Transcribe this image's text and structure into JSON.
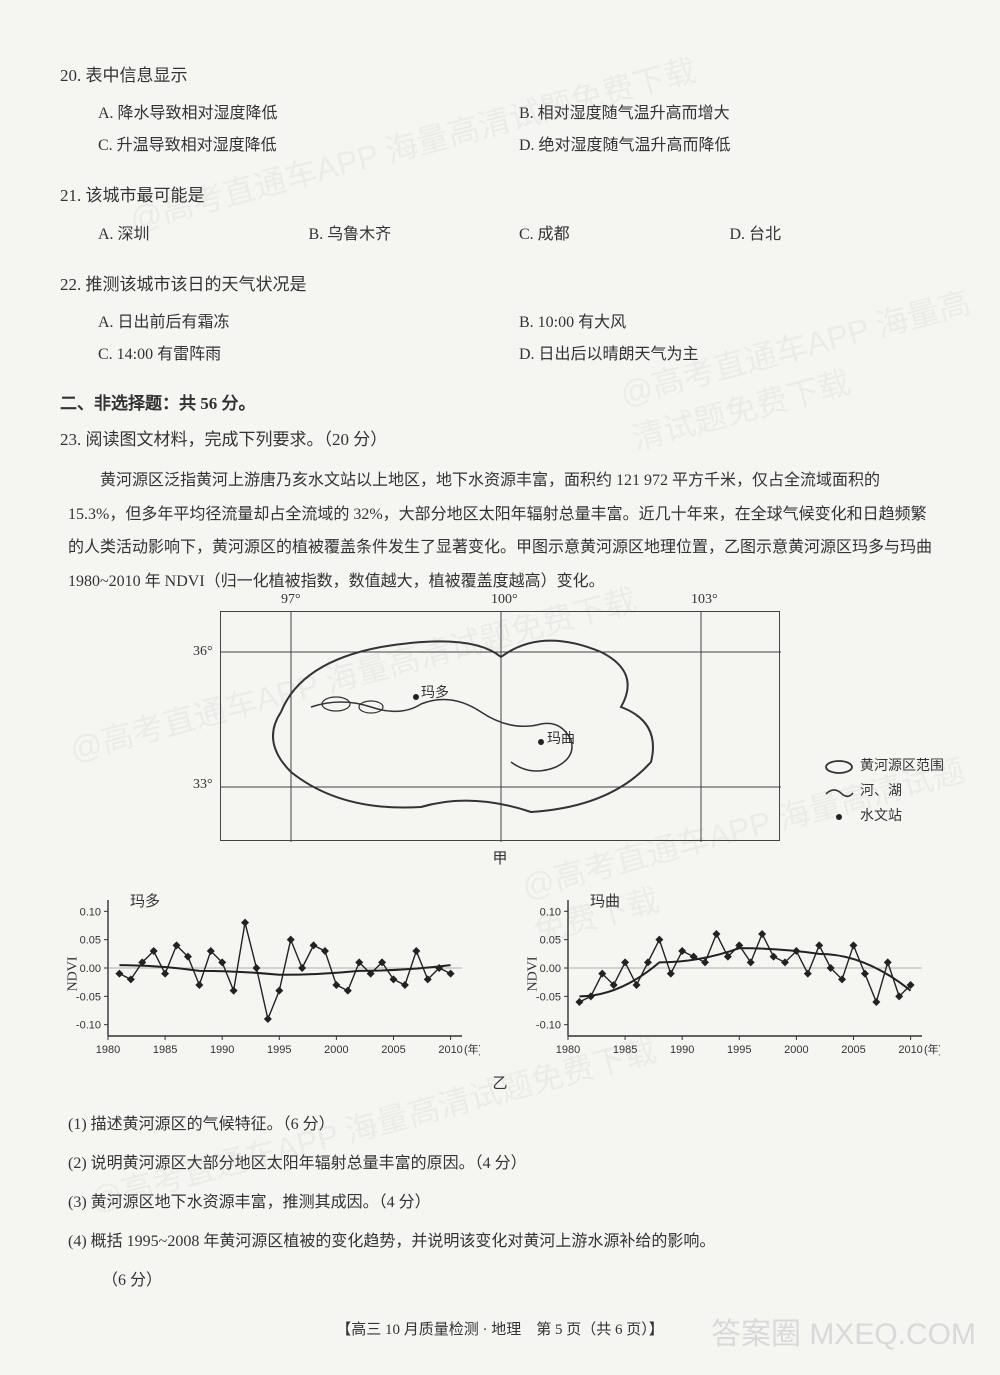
{
  "q20": {
    "num": "20.",
    "stem": "表中信息显示",
    "A": "A. 降水导致相对湿度降低",
    "B": "B. 相对湿度随气温升高而增大",
    "C": "C. 升温导致相对湿度降低",
    "D": "D. 绝对湿度随气温升高而降低"
  },
  "q21": {
    "num": "21.",
    "stem": "该城市最可能是",
    "A": "A. 深圳",
    "B": "B. 乌鲁木齐",
    "C": "C. 成都",
    "D": "D. 台北"
  },
  "q22": {
    "num": "22.",
    "stem": "推测该城市该日的天气状况是",
    "A": "A. 日出前后有霜冻",
    "B": "B. 10:00 有大风",
    "C": "C. 14:00 有雷阵雨",
    "D": "D. 日出后以晴朗天气为主"
  },
  "section2": "二、非选择题：共 56 分。",
  "q23": {
    "num": "23.",
    "stem": "阅读图文材料，完成下列要求。（20 分）",
    "passage": "黄河源区泛指黄河上游唐乃亥水文站以上地区，地下水资源丰富，面积约 121 972 平方千米，仅占全流域面积的 15.3%，但多年平均径流量却占全流域的 32%，大部分地区太阳年辐射总量丰富。近几十年来，在全球气候变化和日趋频繁的人类活动影响下，黄河源区的植被覆盖条件发生了显著变化。甲图示意黄河源区地理位置，乙图示意黄河源区玛多与玛曲 1980~2010 年 NDVI（归一化植被指数，数值越大，植被覆盖度越高）变化。",
    "sub1": "(1) 描述黄河源区的气候特征。（6 分）",
    "sub2": "(2) 说明黄河源区大部分地区太阳年辐射总量丰富的原因。（4 分）",
    "sub3": "(3) 黄河源区地下水资源丰富，推测其成因。（4 分）",
    "sub4_a": "(4) 概括 1995~2008 年黄河源区植被的变化趋势，并说明该变化对黄河上游水源补给的影响。",
    "sub4_b": "（6 分）"
  },
  "map": {
    "lon": [
      "97°",
      "100°",
      "103°"
    ],
    "lat": [
      "36°",
      "33°"
    ],
    "places": {
      "maduo": "玛多",
      "maqu": "玛曲"
    },
    "legend": {
      "boundary": "黄河源区范围",
      "river": "河、湖",
      "station": "水文站"
    },
    "caption": "甲",
    "grid_color": "#444",
    "boundary_color": "#333",
    "river_color": "#333"
  },
  "charts": {
    "caption": "乙",
    "ndvi_label": "NDVI",
    "year_label": "(年)",
    "x_ticks": [
      1980,
      1985,
      1990,
      1995,
      2000,
      2005,
      2010
    ],
    "y_ticks": [
      -0.1,
      -0.05,
      0.0,
      0.05,
      0.1
    ],
    "ylim": [
      -0.12,
      0.12
    ],
    "xlim": [
      1980,
      2011
    ],
    "maduo": {
      "title": "玛多",
      "color": "#222",
      "data": [
        [
          1981,
          -0.01
        ],
        [
          1982,
          -0.02
        ],
        [
          1983,
          0.01
        ],
        [
          1984,
          0.03
        ],
        [
          1985,
          -0.01
        ],
        [
          1986,
          0.04
        ],
        [
          1987,
          0.02
        ],
        [
          1988,
          -0.03
        ],
        [
          1989,
          0.03
        ],
        [
          1990,
          0.01
        ],
        [
          1991,
          -0.04
        ],
        [
          1992,
          0.08
        ],
        [
          1993,
          0.0
        ],
        [
          1994,
          -0.09
        ],
        [
          1995,
          -0.04
        ],
        [
          1996,
          0.05
        ],
        [
          1997,
          0.0
        ],
        [
          1998,
          0.04
        ],
        [
          1999,
          0.03
        ],
        [
          2000,
          -0.03
        ],
        [
          2001,
          -0.04
        ],
        [
          2002,
          0.01
        ],
        [
          2003,
          -0.01
        ],
        [
          2004,
          0.01
        ],
        [
          2005,
          -0.02
        ],
        [
          2006,
          -0.03
        ],
        [
          2007,
          0.03
        ],
        [
          2008,
          -0.02
        ],
        [
          2009,
          0.0
        ],
        [
          2010,
          -0.01
        ]
      ],
      "trend": [
        [
          1981,
          0.005
        ],
        [
          1988,
          -0.005
        ],
        [
          1995,
          -0.012
        ],
        [
          2002,
          -0.005
        ],
        [
          2010,
          0.005
        ]
      ]
    },
    "maqu": {
      "title": "玛曲",
      "color": "#222",
      "data": [
        [
          1981,
          -0.06
        ],
        [
          1982,
          -0.05
        ],
        [
          1983,
          -0.01
        ],
        [
          1984,
          -0.03
        ],
        [
          1985,
          0.01
        ],
        [
          1986,
          -0.03
        ],
        [
          1987,
          0.01
        ],
        [
          1988,
          0.05
        ],
        [
          1989,
          -0.01
        ],
        [
          1990,
          0.03
        ],
        [
          1991,
          0.02
        ],
        [
          1992,
          0.01
        ],
        [
          1993,
          0.06
        ],
        [
          1994,
          0.02
        ],
        [
          1995,
          0.04
        ],
        [
          1996,
          0.01
        ],
        [
          1997,
          0.06
        ],
        [
          1998,
          0.02
        ],
        [
          1999,
          0.01
        ],
        [
          2000,
          0.03
        ],
        [
          2001,
          -0.01
        ],
        [
          2002,
          0.04
        ],
        [
          2003,
          0.0
        ],
        [
          2004,
          -0.02
        ],
        [
          2005,
          0.04
        ],
        [
          2006,
          -0.01
        ],
        [
          2007,
          -0.06
        ],
        [
          2008,
          0.01
        ],
        [
          2009,
          -0.05
        ],
        [
          2010,
          -0.03
        ]
      ],
      "trend": [
        [
          1981,
          -0.05
        ],
        [
          1988,
          0.01
        ],
        [
          1995,
          0.035
        ],
        [
          2002,
          0.025
        ],
        [
          2010,
          -0.04
        ]
      ]
    }
  },
  "footer": "【高三 10 月质量检测 · 地理　第 5 页（共 6 页）】",
  "watermarks": [
    "@高考直通车APP 海量高清试题免费下载"
  ],
  "corner": "答案圈\nMXEQ.COM"
}
